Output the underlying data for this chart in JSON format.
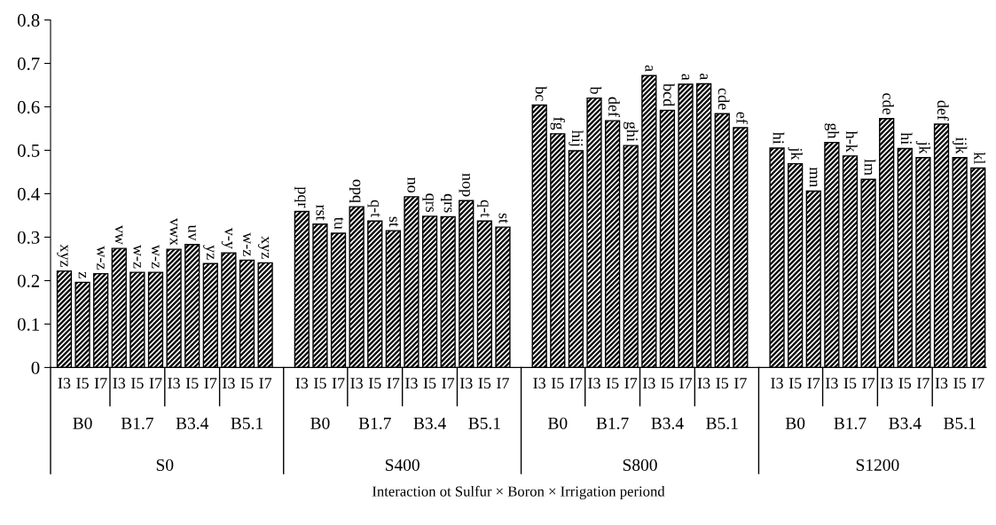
{
  "chart_data": {
    "type": "bar",
    "categories": [
      "I3",
      "I5",
      "I7",
      "I3",
      "I5",
      "I7",
      "I3",
      "I5",
      "I7",
      "I3",
      "I5",
      "I7",
      null,
      "I3",
      "I5",
      "I7",
      "I3",
      "I5",
      "I7",
      "I3",
      "I5",
      "I7",
      "I3",
      "I5",
      "I7",
      null,
      "I3",
      "I5",
      "I7",
      "I3",
      "I5",
      "I7",
      "I3",
      "I5",
      "I7",
      "I3",
      "I5",
      "I7",
      null,
      "I3",
      "I5",
      "I7",
      "I3",
      "I5",
      "I7",
      "I3",
      "I5",
      "I7",
      "I3",
      "I5",
      "I7"
    ],
    "series": [
      {
        "color": "#000000",
        "values": [
          0.222,
          0.196,
          0.216,
          0.274,
          0.219,
          0.219,
          0.272,
          0.283,
          0.239,
          0.264,
          0.247,
          0.241,
          null,
          0.359,
          0.33,
          0.309,
          0.37,
          0.337,
          0.315,
          0.393,
          0.348,
          0.347,
          0.384,
          0.337,
          0.323,
          null,
          0.604,
          0.538,
          0.499,
          0.62,
          0.568,
          0.511,
          0.672,
          0.592,
          0.652,
          0.653,
          0.584,
          0.552,
          null,
          0.505,
          0.469,
          0.406,
          0.518,
          0.487,
          0.433,
          0.573,
          0.504,
          0.483,
          0.56,
          0.483,
          0.459
        ],
        "value_labels": [
          "xyz",
          "z",
          "w-z",
          "vw",
          "w-z",
          "w-z",
          "vwx",
          "uv",
          "yz",
          "v-y",
          "w-z",
          "xyz",
          null,
          "pqr",
          "rst",
          "tu",
          "opq",
          "q-t",
          "st",
          "no",
          "qrs",
          "qrs",
          "nop",
          "q-t",
          "st",
          null,
          "bc",
          "fg",
          "hij",
          "b",
          "def",
          "ghi",
          "a",
          "bcd",
          "a",
          "a",
          "cde",
          "ef",
          null,
          "hi",
          "jk",
          "mn",
          "gh",
          "h-k",
          "lm",
          "cde",
          "hi",
          "jk",
          "def",
          "ijk",
          "kl"
        ]
      }
    ],
    "annotations": [
      "B0",
      "B1.7",
      "B3.4",
      "B5.1",
      "B0",
      "B1.7",
      "B3.4",
      "B5.1",
      "B0",
      "B1.7",
      "B3.4",
      "B5.1",
      "B0",
      "B1.7",
      "B3.4",
      "B5.1",
      "S0",
      "S400",
      "S800",
      "S1200",
      "Interaction ot Sulfur × Boron × Irrigation periond"
    ],
    "ylim": [
      0,
      0.8
    ],
    "yticks": [
      0,
      0.1,
      0.2,
      0.3,
      0.4,
      0.5,
      0.6,
      0.7,
      0.8
    ],
    "grid": false,
    "legend": false
  }
}
